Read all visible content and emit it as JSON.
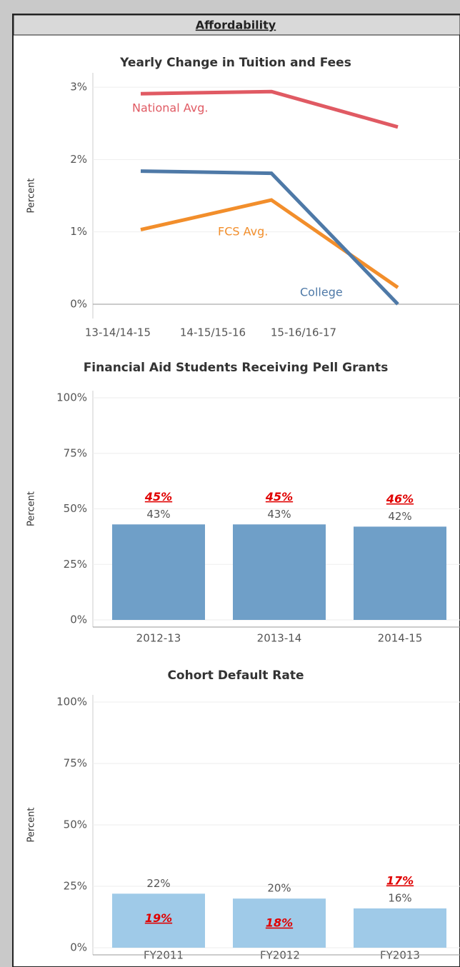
{
  "header": {
    "title": "Affordability"
  },
  "chart_data": [
    {
      "type": "line",
      "title": "Yearly Change in Tuition and Fees",
      "y_label": "Percent",
      "categories": [
        "13-14/14-15",
        "14-15/15-16",
        "15-16/16-17"
      ],
      "series": [
        {
          "name": "National Avg.",
          "color": "#e05a63",
          "values": [
            2.91,
            2.94,
            2.45
          ]
        },
        {
          "name": "FCS Avg.",
          "color": "#f28e2b",
          "values": [
            1.03,
            1.44,
            0.23
          ]
        },
        {
          "name": "College",
          "color": "#4e79a7",
          "values": [
            1.84,
            1.81,
            0
          ]
        }
      ],
      "ylim": [
        -0.1,
        3.1
      ],
      "yticks": [
        {
          "value": 0,
          "label": "0%"
        },
        {
          "value": 1,
          "label": "1%"
        },
        {
          "value": 2,
          "label": "2%"
        },
        {
          "value": 3,
          "label": "3%"
        }
      ],
      "grid": true
    },
    {
      "type": "bar",
      "title": "Financial Aid Students Receiving Pell Grants",
      "y_label": "Percent",
      "categories": [
        "2012-13",
        "2013-14",
        "2014-15"
      ],
      "values": [
        43,
        43,
        42
      ],
      "value_labels": [
        "43%",
        "43%",
        "42%"
      ],
      "color": "#6f9fc8",
      "comparison_values": [
        45,
        45,
        46
      ],
      "comparison_labels": [
        "45%",
        "45%",
        "46%"
      ],
      "comparison_color": "#e00000",
      "ylim": [
        0,
        100
      ],
      "yticks": [
        {
          "value": 0,
          "label": "0%"
        },
        {
          "value": 25,
          "label": "25%"
        },
        {
          "value": 50,
          "label": "50%"
        },
        {
          "value": 75,
          "label": "75%"
        },
        {
          "value": 100,
          "label": "100%"
        }
      ],
      "grid": true
    },
    {
      "type": "bar",
      "title": "Cohort Default Rate",
      "y_label": "Percent",
      "categories": [
        "FY2011",
        "FY2012",
        "FY2013"
      ],
      "values": [
        22,
        20,
        16
      ],
      "value_labels": [
        "22%",
        "20%",
        "16%"
      ],
      "color": "#9fcae8",
      "comparison_values": [
        19,
        18,
        17
      ],
      "comparison_labels": [
        "19%",
        "18%",
        "17%"
      ],
      "comparison_color": "#e00000",
      "ylim": [
        0,
        100
      ],
      "yticks": [
        {
          "value": 0,
          "label": "0%"
        },
        {
          "value": 25,
          "label": "25%"
        },
        {
          "value": 50,
          "label": "50%"
        },
        {
          "value": 75,
          "label": "75%"
        },
        {
          "value": 100,
          "label": "100%"
        }
      ],
      "grid": true
    }
  ]
}
